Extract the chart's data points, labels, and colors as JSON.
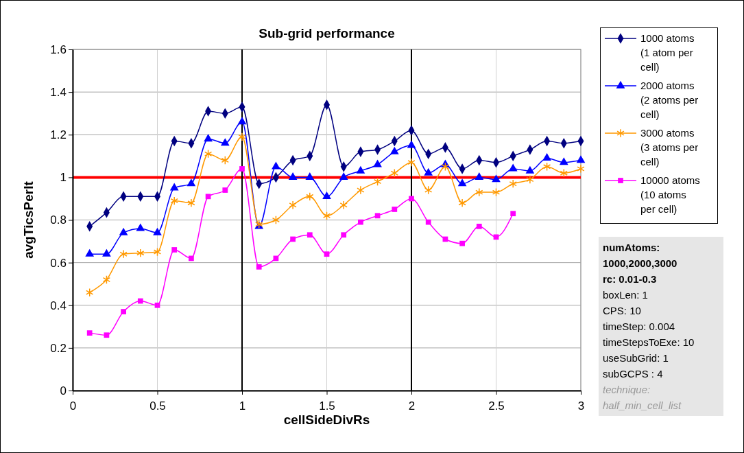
{
  "chart_data": {
    "type": "line",
    "title": "Sub-grid performance",
    "xlabel": "cellSideDivRs",
    "ylabel": "avgTicsPerIt",
    "x": [
      0.1,
      0.2,
      0.3,
      0.4,
      0.5,
      0.6,
      0.7,
      0.8,
      0.9,
      1.0,
      1.1,
      1.2,
      1.3,
      1.4,
      1.5,
      1.6,
      1.7,
      1.8,
      1.9,
      2.0,
      2.1,
      2.2,
      2.3,
      2.4,
      2.5,
      2.6,
      2.7,
      2.8,
      2.9,
      3.0
    ],
    "series": [
      {
        "name": "1000 atoms (1 atom per cell)",
        "color": "#000080",
        "marker": "diamond",
        "values": [
          0.77,
          0.835,
          0.91,
          0.91,
          0.91,
          1.17,
          1.16,
          1.31,
          1.3,
          1.33,
          0.97,
          1.0,
          1.08,
          1.1,
          1.34,
          1.05,
          1.12,
          1.13,
          1.17,
          1.22,
          1.11,
          1.14,
          1.04,
          1.08,
          1.07,
          1.1,
          1.13,
          1.17,
          1.16,
          1.17
        ]
      },
      {
        "name": "2000 atoms (2 atoms per cell)",
        "color": "#0000ff",
        "marker": "triangle",
        "values": [
          0.64,
          0.64,
          0.74,
          0.76,
          0.74,
          0.95,
          0.97,
          1.18,
          1.16,
          1.26,
          0.77,
          1.05,
          1.0,
          1.0,
          0.91,
          1.0,
          1.03,
          1.06,
          1.12,
          1.15,
          1.02,
          1.06,
          0.97,
          1.0,
          0.99,
          1.04,
          1.03,
          1.09,
          1.07,
          1.08
        ]
      },
      {
        "name": "3000 atoms (3 atoms per cell)",
        "color": "#ff9900",
        "marker": "cross",
        "values": [
          0.46,
          0.52,
          0.64,
          0.645,
          0.65,
          0.89,
          0.88,
          1.11,
          1.08,
          1.19,
          0.78,
          0.8,
          0.87,
          0.91,
          0.82,
          0.87,
          0.94,
          0.98,
          1.02,
          1.07,
          0.94,
          1.05,
          0.88,
          0.93,
          0.93,
          0.97,
          0.99,
          1.05,
          1.02,
          1.04
        ]
      },
      {
        "name": "10000 atoms (10 atoms per cell)",
        "color": "#ff00ff",
        "marker": "square",
        "values": [
          0.27,
          0.26,
          0.37,
          0.42,
          0.4,
          0.66,
          0.62,
          0.91,
          0.94,
          1.04,
          0.58,
          0.62,
          0.71,
          0.73,
          0.64,
          0.73,
          0.79,
          0.82,
          0.85,
          0.9,
          0.79,
          0.71,
          0.69,
          0.77,
          0.72,
          0.83,
          null,
          null,
          null,
          null
        ]
      }
    ],
    "xlim": [
      0,
      3
    ],
    "xticks": [
      0,
      0.5,
      1,
      1.5,
      2,
      2.5,
      3
    ],
    "ylim": [
      0,
      1.6
    ],
    "yticks": [
      0,
      0.2,
      0.4,
      0.6,
      0.8,
      1,
      1.2,
      1.4,
      1.6
    ],
    "grid": true,
    "legend": "right",
    "line_style": "solid",
    "ref_lines": [
      {
        "axis": "y",
        "value": 1,
        "color": "#ff0000"
      },
      {
        "axis": "x",
        "value": 1,
        "color": "#000000"
      },
      {
        "axis": "x",
        "value": 2,
        "color": "#000000"
      }
    ],
    "annotations": [
      "numAtoms: 1000,2000,3000",
      "rc: 0.01-0.3",
      "boxLen: 1",
      "CPS: 10",
      "timeStep: 0.004",
      "timeStepsToExe: 10",
      "useSubGrid: 1",
      "subGCPS : 4",
      "technique: half_min_cell_list"
    ]
  }
}
